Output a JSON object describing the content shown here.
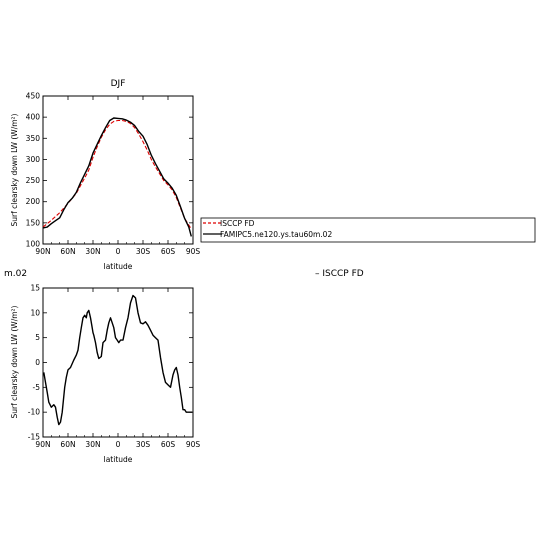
{
  "chart_data": [
    {
      "type": "line",
      "title": "DJF",
      "xlabel": "latitude",
      "ylabel": "Surf clearsky down LW (W/m²)",
      "xlim": [
        -90,
        90
      ],
      "ylim": [
        100,
        450
      ],
      "x_ticks": [
        -90,
        -60,
        -30,
        0,
        30,
        60,
        90
      ],
      "x_tick_labels": [
        "90N",
        "60N",
        "30N",
        "0",
        "30S",
        "60S",
        "90S"
      ],
      "y_ticks": [
        100,
        150,
        200,
        250,
        300,
        350,
        400,
        450
      ],
      "y_tick_labels": [
        "100",
        "150",
        "200",
        "250",
        "300",
        "350",
        "400",
        "450"
      ],
      "legend_position": "right",
      "series": [
        {
          "name": "ISCCP FD",
          "color": "#dd0000",
          "style": "dashed",
          "x": [
            -90,
            -85,
            -80,
            -75,
            -70,
            -65,
            -60,
            -55,
            -50,
            -45,
            -40,
            -35,
            -30,
            -25,
            -20,
            -15,
            -10,
            -5,
            0,
            5,
            10,
            15,
            20,
            25,
            30,
            35,
            40,
            45,
            50,
            55,
            60,
            65,
            70,
            75,
            80,
            85,
            88
          ],
          "y": [
            140,
            148,
            156,
            165,
            174,
            185,
            196,
            208,
            220,
            238,
            256,
            275,
            305,
            330,
            352,
            370,
            383,
            390,
            392,
            392,
            390,
            385,
            375,
            360,
            342,
            322,
            300,
            282,
            266,
            250,
            240,
            228,
            210,
            185,
            160,
            145,
            135
          ]
        },
        {
          "name": "FAMIPC5.ne120.ys.tau60m.02",
          "color": "#000000",
          "style": "solid",
          "x": [
            -90,
            -85,
            -80,
            -75,
            -70,
            -65,
            -60,
            -55,
            -50,
            -45,
            -40,
            -35,
            -30,
            -25,
            -20,
            -15,
            -10,
            -5,
            0,
            5,
            10,
            15,
            20,
            25,
            30,
            35,
            40,
            45,
            50,
            55,
            60,
            65,
            70,
            75,
            80,
            85,
            88
          ],
          "y": [
            138,
            140,
            148,
            155,
            162,
            181,
            198,
            208,
            222,
            245,
            265,
            285,
            315,
            336,
            356,
            375,
            392,
            398,
            397,
            396,
            393,
            388,
            380,
            366,
            355,
            335,
            310,
            290,
            272,
            254,
            244,
            232,
            215,
            188,
            160,
            140,
            118
          ]
        }
      ]
    },
    {
      "type": "line",
      "title": "",
      "xlabel": "latitude",
      "ylabel": "Surf clearsky down LW (W/m²)",
      "xlim": [
        -90,
        90
      ],
      "ylim": [
        -15,
        15
      ],
      "x_ticks": [
        -90,
        -60,
        -30,
        0,
        30,
        60,
        90
      ],
      "x_tick_labels": [
        "90N",
        "60N",
        "30N",
        "0",
        "30S",
        "60S",
        "90S"
      ],
      "y_ticks": [
        -15,
        -10,
        -5,
        0,
        5,
        10,
        15
      ],
      "y_tick_labels": [
        "-15",
        "-10",
        "-5",
        "0",
        "5",
        "10",
        "15"
      ],
      "series": [
        {
          "color": "#000000",
          "style": "solid",
          "x": [
            -89,
            -87,
            -85,
            -83,
            -80,
            -77,
            -75,
            -73,
            -71,
            -69,
            -67,
            -64,
            -62,
            -60,
            -57,
            -53,
            -50,
            -48,
            -46,
            -44,
            -42,
            -40,
            -38,
            -37,
            -35,
            -33,
            -31,
            -30,
            -29,
            -27,
            -25,
            -23,
            -20,
            -18,
            -15,
            -13,
            -11,
            -9,
            -7,
            -5,
            -3,
            -1,
            1,
            3,
            6,
            9,
            12,
            15,
            18,
            21,
            24,
            27,
            30,
            33,
            36,
            39,
            42,
            45,
            48,
            51,
            54,
            57,
            60,
            63,
            66,
            68,
            70,
            72,
            74,
            76,
            78,
            80,
            82,
            84,
            86,
            88,
            89
          ],
          "y": [
            -2,
            -4,
            -6,
            -8,
            -9,
            -8.5,
            -9,
            -11,
            -12.5,
            -12,
            -10,
            -5,
            -3,
            -1.5,
            -1,
            0.5,
            1.5,
            2.5,
            5,
            7,
            9,
            9.5,
            9,
            10,
            10.5,
            9,
            7,
            6,
            5.5,
            4,
            2,
            0.8,
            1.2,
            4,
            4.5,
            6.5,
            8,
            9,
            8,
            7,
            5,
            4.5,
            4,
            4.5,
            4.5,
            7,
            9,
            12,
            13.5,
            13,
            10,
            8,
            7.8,
            8.2,
            7.5,
            6.5,
            5.5,
            5,
            4.5,
            1,
            -2,
            -4,
            -4.5,
            -5,
            -2.5,
            -1.5,
            -1,
            -2.5,
            -5,
            -7,
            -9.5,
            -9.5,
            -10,
            -10,
            -10,
            -10,
            -10
          ]
        }
      ]
    }
  ],
  "panel2": {
    "partial_title": "m.02",
    "legend_fragment": "– ISCCP FD"
  }
}
